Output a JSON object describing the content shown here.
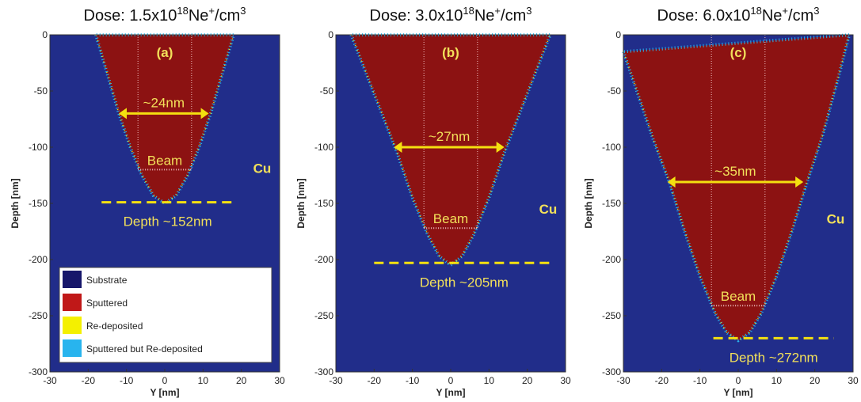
{
  "chart_data": [
    {
      "type": "crater",
      "title": [
        {
          "text": "Dose: 1.5x10"
        },
        {
          "text": "18",
          "sup": true
        },
        {
          "text": "Ne"
        },
        {
          "text": "+",
          "sup": true
        },
        {
          "text": "/cm"
        },
        {
          "text": "3",
          "sup": true
        }
      ],
      "label": "(a)",
      "xlabel": "Y [nm]",
      "ylabel": "Depth [nm]",
      "xlim": [
        -30,
        30
      ],
      "ylim": [
        -300,
        0
      ],
      "xticks": [
        -30,
        -20,
        -10,
        0,
        10,
        20,
        30
      ],
      "yticks": [
        0,
        -50,
        -100,
        -150,
        -200,
        -250,
        -300
      ],
      "boundary": {
        "x": [
          -18,
          -15,
          -12,
          -9,
          -6,
          -3,
          0,
          3,
          6,
          9,
          12,
          15,
          18
        ],
        "values": [
          0,
          -35,
          -70,
          -100,
          -125,
          -143,
          -150,
          -143,
          -125,
          -100,
          -70,
          -35,
          0
        ]
      },
      "width": {
        "label": "~24nm",
        "y": -70,
        "x": [
          -12,
          11.5
        ]
      },
      "depth": {
        "label": "Depth ~152nm",
        "y": -149,
        "x": [
          -16.5,
          18
        ]
      },
      "beam": {
        "label": "Beam",
        "x": [
          -7,
          7
        ],
        "y": -120
      },
      "material": "Cu",
      "legend": {
        "entries": [
          {
            "name": "Substrate",
            "color": "#16166a"
          },
          {
            "name": "Sputtered",
            "color": "#c01818"
          },
          {
            "name": "Re-deposited",
            "color": "#f4f000"
          },
          {
            "name": "Sputtered but Re-deposited",
            "color": "#28b4ee"
          }
        ]
      }
    },
    {
      "type": "crater",
      "title": [
        {
          "text": "Dose: 3.0x10"
        },
        {
          "text": "18",
          "sup": true
        },
        {
          "text": "Ne"
        },
        {
          "text": "+",
          "sup": true
        },
        {
          "text": "/cm"
        },
        {
          "text": "3",
          "sup": true
        }
      ],
      "label": "(b)",
      "xlabel": "Y [nm]",
      "ylabel": "Depth [nm]",
      "xlim": [
        -30,
        30
      ],
      "ylim": [
        -300,
        0
      ],
      "xticks": [
        -30,
        -20,
        -10,
        0,
        10,
        20,
        30
      ],
      "yticks": [
        0,
        -50,
        -100,
        -150,
        -200,
        -250,
        -300
      ],
      "boundary": {
        "x": [
          -26,
          -22,
          -18,
          -14,
          -10,
          -6,
          -3,
          0,
          3,
          6,
          10,
          14,
          18,
          22,
          26
        ],
        "values": [
          0,
          -35,
          -70,
          -105,
          -145,
          -178,
          -197,
          -205,
          -197,
          -178,
          -145,
          -105,
          -70,
          -35,
          0
        ]
      },
      "width": {
        "label": "~27nm",
        "y": -100,
        "x": [
          -14.8,
          14
        ]
      },
      "depth": {
        "label": "Depth ~205nm",
        "y": -203,
        "x": [
          -20,
          27
        ]
      },
      "beam": {
        "label": "Beam",
        "x": [
          -7,
          7
        ],
        "y": -172
      },
      "material": "Cu"
    },
    {
      "type": "crater",
      "title": [
        {
          "text": "Dose: 6.0x10"
        },
        {
          "text": "18",
          "sup": true
        },
        {
          "text": "Ne"
        },
        {
          "text": "+",
          "sup": true
        },
        {
          "text": "/cm"
        },
        {
          "text": "3",
          "sup": true
        }
      ],
      "label": "(c)",
      "xlabel": "Y [nm]",
      "ylabel": "Depth [nm]",
      "xlim": [
        -30,
        30
      ],
      "ylim": [
        -300,
        0
      ],
      "xticks": [
        -30,
        -20,
        -10,
        0,
        10,
        20,
        30
      ],
      "yticks": [
        0,
        -50,
        -100,
        -150,
        -200,
        -250,
        -300
      ],
      "boundary": {
        "x": [
          -30,
          -26,
          -22,
          -18,
          -14,
          -10,
          -6,
          -3,
          0,
          3,
          6,
          10,
          14,
          18,
          22,
          26,
          29
        ],
        "values": [
          -15,
          -55,
          -95,
          -131,
          -175,
          -215,
          -248,
          -265,
          -272,
          -265,
          -248,
          -215,
          -175,
          -131,
          -90,
          -40,
          0
        ]
      },
      "width": {
        "label": "~35nm",
        "y": -131,
        "x": [
          -18.5,
          17
        ]
      },
      "depth": {
        "label": "Depth ~272nm",
        "y": -270,
        "x": [
          -6.5,
          25
        ]
      },
      "beam": {
        "label": "Beam",
        "x": [
          -7,
          7
        ],
        "y": -241
      },
      "material": "Cu"
    }
  ]
}
